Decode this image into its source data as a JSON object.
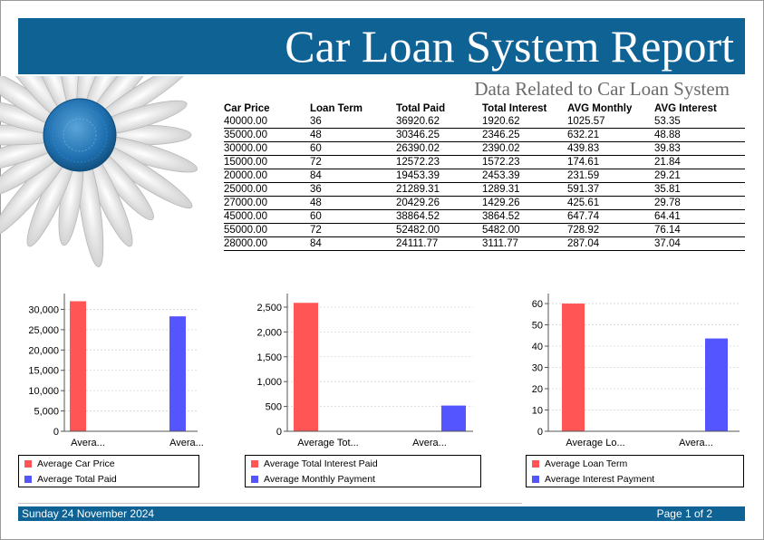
{
  "report": {
    "title": "Car Loan System Report",
    "subtitle": "Data Related to Car Loan System"
  },
  "table": {
    "columns": [
      "Car Price",
      "Loan Term",
      "Total Paid",
      "Total Interest",
      "AVG Monthly",
      "AVG Interest"
    ],
    "rows": [
      [
        "40000.00",
        "36",
        "36920.62",
        "1920.62",
        "1025.57",
        "53.35"
      ],
      [
        "35000.00",
        "48",
        "30346.25",
        "2346.25",
        "632.21",
        "48.88"
      ],
      [
        "30000.00",
        "60",
        "26390.02",
        "2390.02",
        "439.83",
        "39.83"
      ],
      [
        "15000.00",
        "72",
        "12572.23",
        "1572.23",
        "174.61",
        "21.84"
      ],
      [
        "20000.00",
        "84",
        "19453.39",
        "2453.39",
        "231.59",
        "29.21"
      ],
      [
        "25000.00",
        "36",
        "21289.31",
        "1289.31",
        "591.37",
        "35.81"
      ],
      [
        "27000.00",
        "48",
        "20429.26",
        "1429.26",
        "425.61",
        "29.78"
      ],
      [
        "45000.00",
        "60",
        "38864.52",
        "3864.52",
        "647.74",
        "64.41"
      ],
      [
        "55000.00",
        "72",
        "52482.00",
        "5482.00",
        "728.92",
        "76.14"
      ],
      [
        "28000.00",
        "84",
        "24111.77",
        "3111.77",
        "287.04",
        "37.04"
      ]
    ]
  },
  "colors": {
    "series_a": "#ff5555",
    "series_b": "#5555ff",
    "header_bar": "#0f6294"
  },
  "chart_data": [
    {
      "type": "bar",
      "categories": [
        "Avera...",
        "Avera..."
      ],
      "series": [
        {
          "name": "Average Car Price",
          "values": [
            32000,
            0
          ]
        },
        {
          "name": "Average Total Paid",
          "values": [
            0,
            28286
          ]
        }
      ],
      "yticks": [
        0,
        5000,
        10000,
        15000,
        20000,
        25000,
        30000
      ],
      "ytick_labels": [
        "0",
        "5,000",
        "10,000",
        "15,000",
        "20,000",
        "25,000",
        "30,000"
      ],
      "ylim": [
        0,
        33000
      ],
      "grid": true,
      "legend": "bottom"
    },
    {
      "type": "bar",
      "categories": [
        "Average Tot...",
        "Avera..."
      ],
      "series": [
        {
          "name": "Average Total Interest Paid",
          "values": [
            2586,
            0
          ]
        },
        {
          "name": "Average Monthly Payment",
          "values": [
            0,
            518
          ]
        }
      ],
      "yticks": [
        0,
        500,
        1000,
        1500,
        2000,
        2500
      ],
      "ytick_labels": [
        "0",
        "500",
        "1,000",
        "1,500",
        "2,000",
        "2,500"
      ],
      "ylim": [
        0,
        2700
      ],
      "grid": true,
      "legend": "bottom"
    },
    {
      "type": "bar",
      "categories": [
        "Average Lo...",
        "Avera..."
      ],
      "series": [
        {
          "name": "Average Loan Term",
          "values": [
            60,
            0
          ]
        },
        {
          "name": "Average Interest Payment",
          "values": [
            0,
            43.6
          ]
        }
      ],
      "yticks": [
        0,
        10,
        20,
        30,
        40,
        50,
        60
      ],
      "ytick_labels": [
        "0",
        "10",
        "20",
        "30",
        "40",
        "50",
        "60"
      ],
      "ylim": [
        0,
        63
      ],
      "grid": true,
      "legend": "bottom"
    }
  ],
  "footer": {
    "date": "Sunday 24 November 2024",
    "page": "Page 1 of 2"
  }
}
